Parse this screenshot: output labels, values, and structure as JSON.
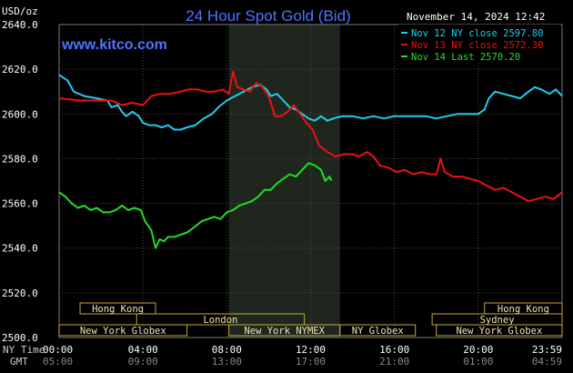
{
  "chart_data": {
    "type": "line",
    "title": "24 Hour Spot Gold (Bid)",
    "ylabel": "USD/oz",
    "website": "www.kitco.com",
    "date_label": "November 14, 2024 12:42",
    "ylim": [
      2500,
      2640
    ],
    "yticks": [
      "2640.0",
      "2620.0",
      "2600.0",
      "2580.0",
      "2560.0",
      "2540.0",
      "2520.0",
      "2500.0"
    ],
    "ytick_values": [
      2640,
      2620,
      2600,
      2580,
      2560,
      2540,
      2520,
      2500
    ],
    "xlim": [
      0,
      24
    ],
    "x_time_labels": [
      {
        "ny": "00:00",
        "gmt": "05:00",
        "hour": 0
      },
      {
        "ny": "04:00",
        "gmt": "09:00",
        "hour": 4
      },
      {
        "ny": "08:00",
        "gmt": "13:00",
        "hour": 8
      },
      {
        "ny": "12:00",
        "gmt": "17:00",
        "hour": 12
      },
      {
        "ny": "16:00",
        "gmt": "21:00",
        "hour": 16
      },
      {
        "ny": "20:00",
        "gmt": "01:00",
        "hour": 20
      },
      {
        "ny": "23:59",
        "gmt": "04:59",
        "hour": 24
      }
    ],
    "x_row_labels": {
      "ny": "NY Time",
      "gmt": "GMT"
    },
    "shaded_region": [
      8.1,
      13.4
    ],
    "grid": true,
    "legend_placement": "top-right",
    "markets": [
      {
        "name": "Hong Kong",
        "start": 1.0,
        "end": 4.6,
        "row": 0
      },
      {
        "name": "Hong Kong",
        "start": 20.3,
        "end": 24,
        "row": 0
      },
      {
        "name": "London",
        "start": 3.7,
        "end": 11.7,
        "row": 1
      },
      {
        "name": "Sydney",
        "start": 17.8,
        "end": 24,
        "row": 1
      },
      {
        "name": "New York Globex",
        "start": 0,
        "end": 6.1,
        "row": 2
      },
      {
        "name": "New York NYMEX",
        "start": 8.1,
        "end": 13.4,
        "row": 2
      },
      {
        "name": "NY Globex",
        "start": 13.4,
        "end": 17.0,
        "row": 2
      },
      {
        "name": "New York Globex",
        "start": 18.0,
        "end": 24,
        "row": 2
      }
    ],
    "series": [
      {
        "name": "Nov 12 NY close 2597.80",
        "color": "#22ccee",
        "points": [
          [
            0,
            2617.5
          ],
          [
            0.4,
            2615
          ],
          [
            0.7,
            2610
          ],
          [
            1.2,
            2608
          ],
          [
            1.8,
            2607
          ],
          [
            2.3,
            2606
          ],
          [
            2.5,
            2603
          ],
          [
            2.8,
            2604
          ],
          [
            3.0,
            2601
          ],
          [
            3.2,
            2599
          ],
          [
            3.5,
            2601
          ],
          [
            3.8,
            2599
          ],
          [
            4.0,
            2596
          ],
          [
            4.3,
            2595
          ],
          [
            4.6,
            2595
          ],
          [
            4.9,
            2594
          ],
          [
            5.2,
            2595
          ],
          [
            5.5,
            2593
          ],
          [
            5.8,
            2593
          ],
          [
            6.1,
            2594
          ],
          [
            6.5,
            2595
          ],
          [
            6.9,
            2598
          ],
          [
            7.3,
            2600
          ],
          [
            7.6,
            2603
          ],
          [
            8.0,
            2606
          ],
          [
            8.4,
            2608
          ],
          [
            8.8,
            2610
          ],
          [
            9.2,
            2612
          ],
          [
            9.6,
            2613
          ],
          [
            9.9,
            2611
          ],
          [
            10.1,
            2608
          ],
          [
            10.4,
            2609
          ],
          [
            10.7,
            2606
          ],
          [
            11.0,
            2603
          ],
          [
            11.3,
            2602
          ],
          [
            11.6,
            2600
          ],
          [
            11.9,
            2598
          ],
          [
            12.2,
            2597
          ],
          [
            12.5,
            2599
          ],
          [
            12.8,
            2597
          ],
          [
            13.1,
            2598
          ],
          [
            13.5,
            2599
          ],
          [
            14.0,
            2599
          ],
          [
            14.5,
            2598
          ],
          [
            15.0,
            2599
          ],
          [
            15.5,
            2598
          ],
          [
            16.0,
            2599
          ],
          [
            16.5,
            2599
          ],
          [
            17.0,
            2599
          ],
          [
            17.5,
            2599
          ],
          [
            18.0,
            2598
          ],
          [
            18.5,
            2599
          ],
          [
            19.0,
            2600
          ],
          [
            19.5,
            2600
          ],
          [
            20.0,
            2600
          ],
          [
            20.3,
            2602
          ],
          [
            20.5,
            2607
          ],
          [
            20.8,
            2610
          ],
          [
            21.2,
            2609
          ],
          [
            21.6,
            2608
          ],
          [
            22.0,
            2607
          ],
          [
            22.4,
            2610
          ],
          [
            22.7,
            2612
          ],
          [
            23.0,
            2611
          ],
          [
            23.4,
            2609
          ],
          [
            23.7,
            2611
          ],
          [
            24.0,
            2608
          ]
        ]
      },
      {
        "name": "Nov 13 NY close 2572.30",
        "color": "#ee1111",
        "points": [
          [
            0,
            2607
          ],
          [
            0.5,
            2606.5
          ],
          [
            1.0,
            2606
          ],
          [
            1.5,
            2606
          ],
          [
            2.0,
            2606
          ],
          [
            2.5,
            2606
          ],
          [
            3.0,
            2604
          ],
          [
            3.5,
            2605
          ],
          [
            4.0,
            2604
          ],
          [
            4.4,
            2608
          ],
          [
            4.8,
            2609
          ],
          [
            5.3,
            2609
          ],
          [
            5.8,
            2610
          ],
          [
            6.2,
            2611
          ],
          [
            6.6,
            2611
          ],
          [
            7.0,
            2610
          ],
          [
            7.4,
            2610
          ],
          [
            7.8,
            2611
          ],
          [
            8.1,
            2609
          ],
          [
            8.3,
            2619
          ],
          [
            8.5,
            2612
          ],
          [
            8.8,
            2611
          ],
          [
            9.1,
            2610
          ],
          [
            9.4,
            2614
          ],
          [
            9.7,
            2612
          ],
          [
            10.0,
            2608
          ],
          [
            10.3,
            2599
          ],
          [
            10.6,
            2599
          ],
          [
            10.9,
            2601
          ],
          [
            11.2,
            2604
          ],
          [
            11.5,
            2600
          ],
          [
            11.8,
            2596
          ],
          [
            12.1,
            2593
          ],
          [
            12.4,
            2586
          ],
          [
            12.8,
            2583
          ],
          [
            13.2,
            2581
          ],
          [
            13.6,
            2582
          ],
          [
            14.0,
            2582
          ],
          [
            14.3,
            2581
          ],
          [
            14.7,
            2583
          ],
          [
            15.0,
            2581
          ],
          [
            15.3,
            2577
          ],
          [
            15.7,
            2576
          ],
          [
            16.1,
            2574
          ],
          [
            16.5,
            2575
          ],
          [
            16.9,
            2573
          ],
          [
            17.3,
            2574
          ],
          [
            17.7,
            2573
          ],
          [
            18.0,
            2573
          ],
          [
            18.2,
            2580
          ],
          [
            18.4,
            2574
          ],
          [
            18.8,
            2572
          ],
          [
            19.2,
            2572
          ],
          [
            19.6,
            2571
          ],
          [
            20.0,
            2570
          ],
          [
            20.4,
            2568
          ],
          [
            20.8,
            2566
          ],
          [
            21.2,
            2567
          ],
          [
            21.6,
            2565
          ],
          [
            22.0,
            2563
          ],
          [
            22.4,
            2561
          ],
          [
            22.8,
            2562
          ],
          [
            23.2,
            2563
          ],
          [
            23.6,
            2562
          ],
          [
            24.0,
            2565
          ]
        ]
      },
      {
        "name": "Nov 14 Last 2570.20",
        "color": "#22dd22",
        "points": [
          [
            0,
            2565
          ],
          [
            0.3,
            2563
          ],
          [
            0.6,
            2560
          ],
          [
            0.9,
            2558
          ],
          [
            1.2,
            2559
          ],
          [
            1.5,
            2557
          ],
          [
            1.8,
            2558
          ],
          [
            2.1,
            2556
          ],
          [
            2.4,
            2556
          ],
          [
            2.7,
            2557
          ],
          [
            3.0,
            2559
          ],
          [
            3.3,
            2557
          ],
          [
            3.6,
            2558
          ],
          [
            3.9,
            2557
          ],
          [
            4.1,
            2552
          ],
          [
            4.4,
            2548
          ],
          [
            4.6,
            2540
          ],
          [
            4.8,
            2544
          ],
          [
            5.0,
            2543
          ],
          [
            5.2,
            2545
          ],
          [
            5.5,
            2545
          ],
          [
            5.8,
            2546
          ],
          [
            6.1,
            2547
          ],
          [
            6.4,
            2549
          ],
          [
            6.8,
            2552
          ],
          [
            7.1,
            2553
          ],
          [
            7.4,
            2554
          ],
          [
            7.7,
            2553
          ],
          [
            8.0,
            2556
          ],
          [
            8.3,
            2557
          ],
          [
            8.6,
            2559
          ],
          [
            8.9,
            2560
          ],
          [
            9.2,
            2561
          ],
          [
            9.5,
            2563
          ],
          [
            9.8,
            2566
          ],
          [
            10.1,
            2566
          ],
          [
            10.4,
            2569
          ],
          [
            10.7,
            2571
          ],
          [
            11.0,
            2573
          ],
          [
            11.3,
            2572
          ],
          [
            11.6,
            2575
          ],
          [
            11.9,
            2578
          ],
          [
            12.2,
            2577
          ],
          [
            12.5,
            2575
          ],
          [
            12.7,
            2570
          ],
          [
            12.9,
            2572
          ],
          [
            13.0,
            2570.2
          ]
        ]
      }
    ]
  }
}
